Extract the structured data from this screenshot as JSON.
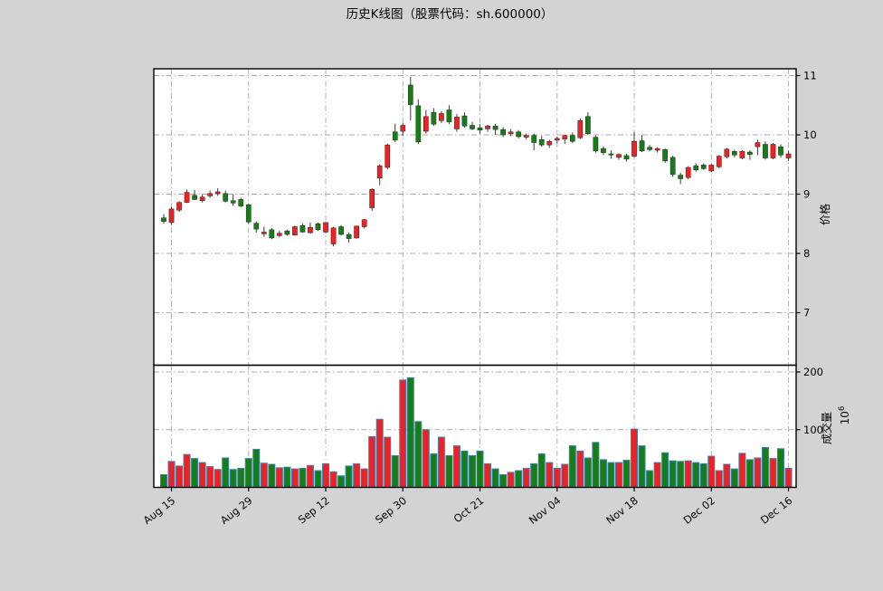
{
  "figure": {
    "title": "历史K线图（股票代码：sh.600000）",
    "background_color": "#d3d3d3",
    "panel_color": "#ffffff"
  },
  "price_axis": {
    "label": "价格",
    "ticks": [
      7,
      8,
      9,
      10,
      11
    ],
    "range": [
      6.15,
      11.12
    ],
    "side": "right"
  },
  "volume_axis": {
    "label": "成交量",
    "offset_base": "10",
    "offset_exponent": "6",
    "ticks": [
      100,
      200
    ],
    "range": [
      0,
      211
    ],
    "side": "right"
  },
  "x_axis": {
    "tick_labels": [
      "Aug 15",
      "Aug 29",
      "Sep 12",
      "Sep 30",
      "Oct 21",
      "Nov 04",
      "Nov 18",
      "Dec 02",
      "Dec 16"
    ],
    "tick_indices": [
      1,
      11,
      21,
      31,
      41,
      51,
      61,
      71,
      81
    ],
    "label_rotation_deg": -38
  },
  "colors": {
    "up": "#ee2222",
    "down": "#157f15",
    "wick": "#3a3a3a",
    "candle_edge": "#262626",
    "volume_edge": "#3f7fb5",
    "grid": "#a9a9a9",
    "spine": "#000000"
  },
  "chart_data": {
    "type": "candlestick_with_volume",
    "symbol": "sh.600000",
    "title": "历史K线图（股票代码：sh.600000）",
    "color_convention": "red = up (close >= open), green = down",
    "volume_unit": "10^6",
    "price_ylim": [
      6.15,
      11.12
    ],
    "volume_ylim": [
      0,
      211
    ],
    "grid": "dash-dot both panels",
    "legend": "none",
    "dates": [
      "08-14",
      "08-15",
      "08-16",
      "08-19",
      "08-20",
      "08-21",
      "08-22",
      "08-23",
      "08-26",
      "08-27",
      "08-28",
      "08-29",
      "08-30",
      "09-02",
      "09-03",
      "09-04",
      "09-05",
      "09-06",
      "09-09",
      "09-10",
      "09-11",
      "09-12",
      "09-13",
      "09-16",
      "09-17",
      "09-18",
      "09-23",
      "09-24",
      "09-25",
      "09-26",
      "09-27",
      "09-30",
      "10-08",
      "10-09",
      "10-10",
      "10-11",
      "10-14",
      "10-15",
      "10-16",
      "10-17",
      "10-18",
      "10-21",
      "10-22",
      "10-23",
      "10-24",
      "10-25",
      "10-28",
      "10-29",
      "10-30",
      "10-31",
      "11-01",
      "11-04",
      "11-05",
      "11-06",
      "11-07",
      "11-08",
      "11-11",
      "11-12",
      "11-13",
      "11-14",
      "11-15",
      "11-18",
      "11-19",
      "11-20",
      "11-21",
      "11-22",
      "11-25",
      "11-26",
      "11-27",
      "11-28",
      "11-29",
      "12-02",
      "12-03",
      "12-04",
      "12-05",
      "12-06",
      "12-09",
      "12-10",
      "12-11",
      "12-12",
      "12-13",
      "12-16"
    ],
    "open": [
      8.6,
      8.52,
      8.73,
      8.86,
      8.98,
      8.89,
      8.97,
      9.01,
      9.01,
      8.89,
      8.91,
      8.82,
      8.51,
      8.33,
      8.4,
      8.3,
      8.38,
      8.31,
      8.47,
      8.35,
      8.5,
      8.36,
      8.16,
      8.45,
      8.32,
      8.26,
      8.45,
      8.77,
      9.27,
      9.45,
      10.05,
      10.06,
      10.84,
      10.49,
      10.06,
      10.38,
      10.24,
      10.42,
      10.1,
      10.32,
      10.16,
      10.12,
      10.1,
      10.15,
      10.09,
      10.02,
      10.05,
      9.96,
      9.99,
      9.92,
      9.83,
      9.91,
      9.93,
      9.99,
      9.95,
      10.31,
      9.96,
      9.77,
      9.68,
      9.62,
      9.65,
      9.64,
      9.9,
      9.79,
      9.74,
      9.75,
      9.62,
      9.32,
      9.28,
      9.48,
      9.49,
      9.39,
      9.46,
      9.63,
      9.72,
      9.61,
      9.71,
      9.8,
      9.84,
      9.61,
      9.8,
      9.61
    ],
    "high": [
      8.66,
      8.78,
      8.88,
      9.08,
      9.07,
      9.0,
      9.06,
      9.1,
      9.06,
      9.0,
      8.94,
      8.84,
      8.54,
      8.45,
      8.43,
      8.38,
      8.4,
      8.47,
      8.5,
      8.52,
      8.52,
      8.53,
      8.45,
      8.48,
      8.35,
      8.47,
      8.58,
      9.1,
      9.5,
      9.85,
      10.19,
      10.2,
      10.98,
      10.6,
      10.42,
      10.45,
      10.4,
      10.5,
      10.35,
      10.38,
      10.22,
      10.18,
      10.17,
      10.18,
      10.13,
      10.1,
      10.08,
      10.02,
      10.02,
      9.98,
      9.92,
      9.97,
      10.0,
      10.04,
      10.28,
      10.38,
      9.99,
      9.81,
      9.74,
      9.69,
      9.68,
      10.05,
      10.0,
      9.83,
      9.79,
      9.77,
      9.65,
      9.36,
      9.47,
      9.52,
      9.52,
      9.51,
      9.66,
      9.78,
      9.75,
      9.74,
      9.74,
      9.92,
      9.89,
      9.86,
      9.84,
      9.73
    ],
    "low": [
      8.5,
      8.48,
      8.7,
      8.85,
      8.9,
      8.86,
      8.94,
      8.97,
      8.86,
      8.8,
      8.78,
      8.5,
      8.35,
      8.28,
      8.24,
      8.27,
      8.3,
      8.3,
      8.35,
      8.33,
      8.38,
      8.34,
      8.12,
      8.3,
      8.18,
      8.25,
      8.42,
      8.72,
      9.15,
      9.42,
      9.88,
      9.98,
      10.24,
      9.85,
      10.02,
      10.15,
      10.2,
      10.18,
      10.05,
      10.12,
      10.08,
      10.02,
      10.05,
      10.0,
      9.96,
      9.98,
      9.94,
      9.92,
      9.74,
      9.8,
      9.78,
      9.86,
      9.85,
      9.86,
      9.93,
      10.0,
      9.7,
      9.66,
      9.6,
      9.58,
      9.55,
      9.62,
      9.71,
      9.72,
      9.7,
      9.53,
      9.29,
      9.17,
      9.25,
      9.38,
      9.41,
      9.37,
      9.43,
      9.6,
      9.62,
      9.59,
      9.58,
      9.66,
      9.58,
      9.59,
      9.62,
      9.56
    ],
    "close": [
      8.54,
      8.75,
      8.86,
      9.03,
      8.91,
      8.95,
      9.01,
      9.04,
      8.88,
      8.85,
      8.8,
      8.53,
      8.41,
      8.36,
      8.26,
      8.34,
      8.32,
      8.45,
      8.36,
      8.44,
      8.4,
      8.52,
      8.43,
      8.32,
      8.25,
      8.46,
      8.57,
      9.08,
      9.48,
      9.83,
      9.91,
      10.16,
      10.51,
      9.88,
      10.31,
      10.18,
      10.36,
      10.22,
      10.3,
      10.15,
      10.1,
      10.08,
      10.15,
      10.09,
      10.0,
      10.05,
      9.97,
      9.99,
      9.87,
      9.83,
      9.89,
      9.94,
      9.99,
      9.89,
      10.24,
      10.02,
      9.73,
      9.7,
      9.66,
      9.67,
      9.59,
      9.89,
      9.73,
      9.75,
      9.77,
      9.56,
      9.33,
      9.26,
      9.45,
      9.41,
      9.43,
      9.49,
      9.64,
      9.76,
      9.66,
      9.72,
      9.67,
      9.87,
      9.61,
      9.84,
      9.66,
      9.68
    ],
    "volume_millions": [
      22,
      45,
      37,
      57,
      50,
      43,
      36,
      31,
      51,
      31,
      33,
      50,
      66,
      42,
      40,
      34,
      35,
      32,
      33,
      38,
      29,
      41,
      27,
      20,
      37,
      41,
      32,
      88,
      118,
      87,
      55,
      186,
      190,
      114,
      100,
      58,
      87,
      55,
      72,
      63,
      55,
      63,
      41,
      32,
      22,
      26,
      29,
      33,
      41,
      58,
      43,
      33,
      40,
      72,
      63,
      51,
      78,
      48,
      43,
      43,
      47,
      101,
      72,
      29,
      43,
      60,
      46,
      45,
      46,
      43,
      41,
      54,
      29,
      40,
      32,
      59,
      48,
      51,
      69,
      50,
      67,
      33
    ]
  }
}
